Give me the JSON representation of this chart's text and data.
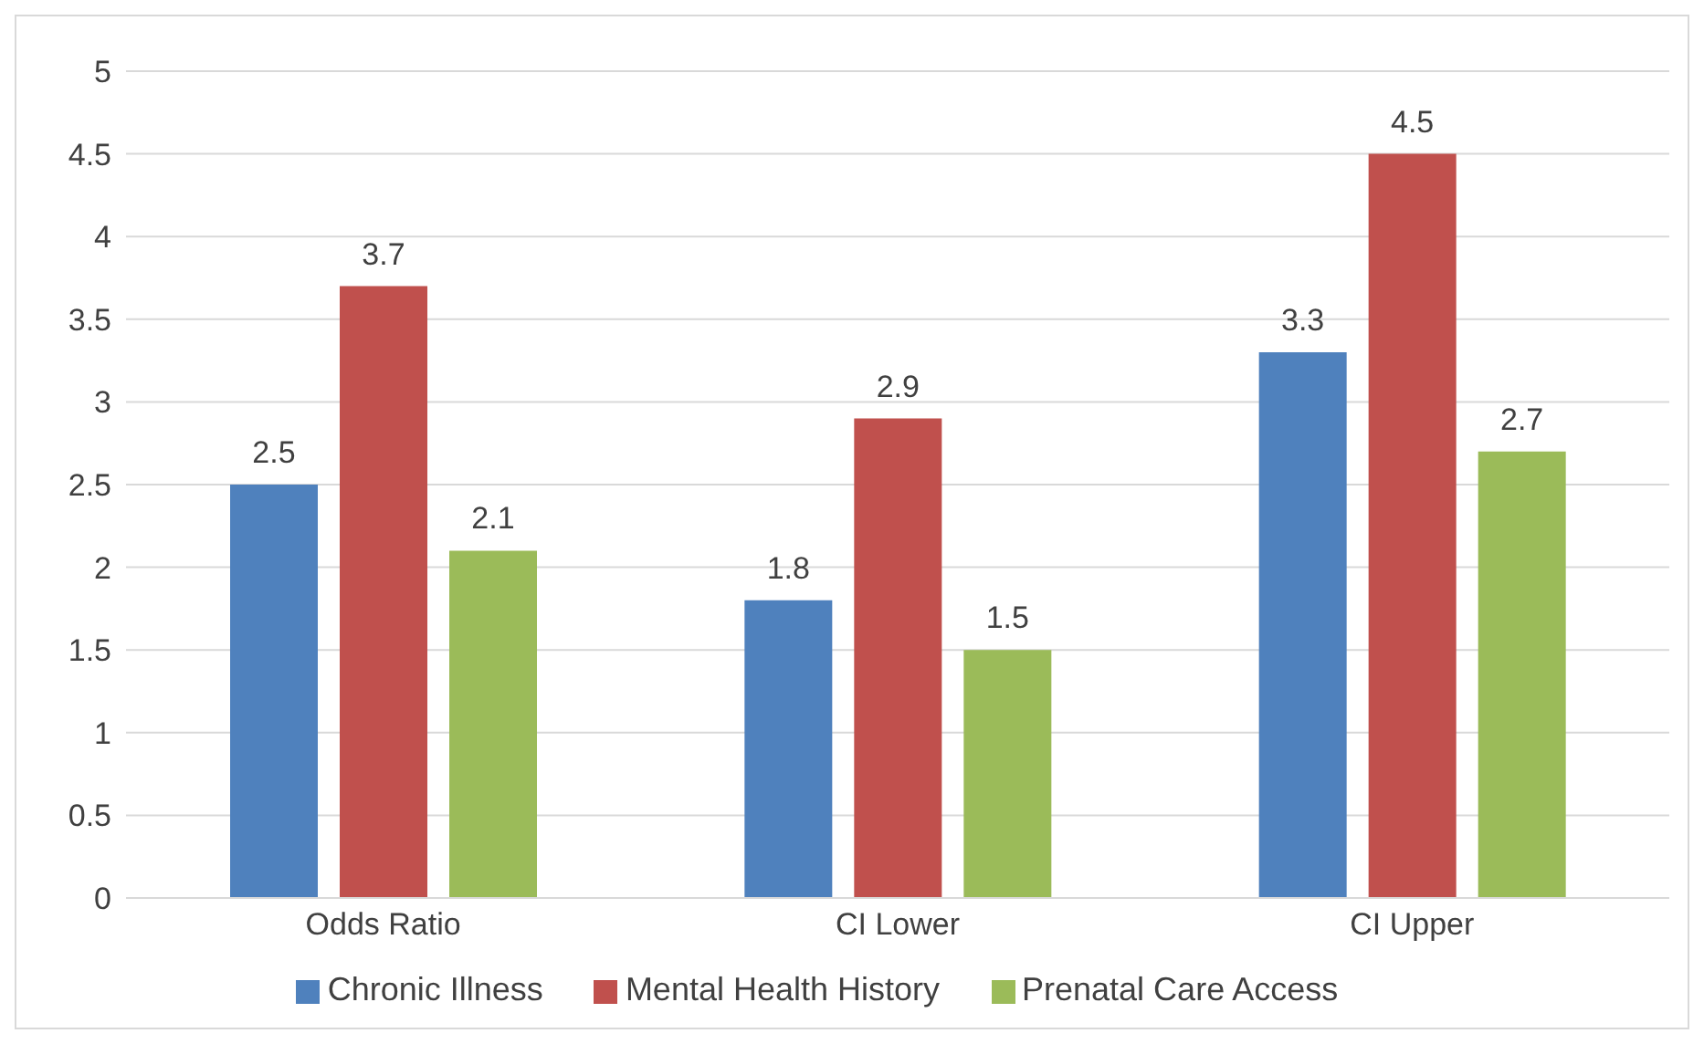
{
  "chart_data": {
    "type": "bar",
    "categories": [
      "Odds Ratio",
      "CI Lower",
      "CI Upper"
    ],
    "series": [
      {
        "name": "Chronic Illness",
        "color": "#4f81bd",
        "values": [
          2.5,
          1.8,
          3.3
        ]
      },
      {
        "name": "Mental Health History",
        "color": "#c0504d",
        "values": [
          3.7,
          2.9,
          4.5
        ]
      },
      {
        "name": "Prenatal Care Access",
        "color": "#9bbb59",
        "values": [
          2.1,
          1.5,
          2.7
        ]
      }
    ],
    "ylim": [
      0,
      5
    ],
    "yticks": [
      0,
      0.5,
      1,
      1.5,
      2,
      2.5,
      3,
      3.5,
      4,
      4.5,
      5
    ],
    "grid": "y",
    "legend": "bottom",
    "data_labels": true
  }
}
